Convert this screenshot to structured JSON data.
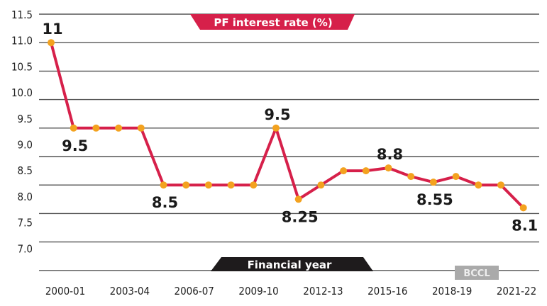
{
  "chart_data": {
    "type": "line",
    "title": "PF interest rate (%)",
    "xlabel": "Financial year",
    "ylabel": "",
    "x": [
      "2000-01",
      "2001-02",
      "2002-03",
      "2003-04",
      "2004-05",
      "2005-06",
      "2006-07",
      "2007-08",
      "2008-09",
      "2009-10",
      "2010-11",
      "2011-12",
      "2012-13",
      "2013-14",
      "2014-15",
      "2015-16",
      "2016-17",
      "2017-18",
      "2018-19",
      "2019-20",
      "2020-21",
      "2021-22"
    ],
    "values": [
      11,
      9.5,
      9.5,
      9.5,
      9.5,
      8.5,
      8.5,
      8.5,
      8.5,
      8.5,
      9.5,
      8.25,
      8.5,
      8.75,
      8.75,
      8.8,
      8.65,
      8.55,
      8.65,
      8.5,
      8.5,
      8.1
    ],
    "x_tick_labels": [
      "2000-01",
      "2003-04",
      "2006-07",
      "2009-10",
      "2012-13",
      "2015-16",
      "2018-19",
      "2021-22"
    ],
    "y_tick_labels": [
      "11.5",
      "11.0",
      "10.5",
      "10.0",
      "9.5",
      "9.0",
      "8.5",
      "8.0",
      "7.5",
      "7.0"
    ],
    "ylim": [
      7.0,
      11.5
    ],
    "grid": "horizontal",
    "data_labels": [
      {
        "index": 0,
        "text": "11",
        "position": "above"
      },
      {
        "index": 1,
        "text": "9.5",
        "position": "below"
      },
      {
        "index": 5,
        "text": "8.5",
        "position": "below"
      },
      {
        "index": 10,
        "text": "9.5",
        "position": "above"
      },
      {
        "index": 11,
        "text": "8.25",
        "position": "below"
      },
      {
        "index": 15,
        "text": "8.8",
        "position": "above"
      },
      {
        "index": 17,
        "text": "8.55",
        "position": "below"
      },
      {
        "index": 21,
        "text": "8.1",
        "position": "below"
      }
    ],
    "colors": {
      "line": "#d6204a",
      "marker": "#f3a21f",
      "title_banner": "#d6204a",
      "xlabel_banner": "#1e1b1c",
      "grid": "#555555"
    },
    "watermark": "BCCL"
  }
}
